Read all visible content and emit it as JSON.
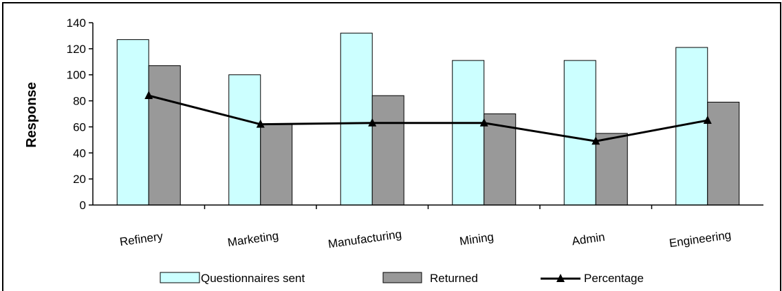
{
  "chart_data": {
    "type": "bar",
    "title": "",
    "xlabel": "",
    "ylabel": "Response",
    "ylim": [
      0,
      140
    ],
    "yticks": [
      0,
      20,
      40,
      60,
      80,
      100,
      120,
      140
    ],
    "grid": false,
    "legend_position": "bottom",
    "categories": [
      "Refinery",
      "Marketing",
      "Manufacturing",
      "Mining",
      "Admin",
      "Engineering"
    ],
    "series": [
      {
        "name": "Questionnaires sent",
        "type": "bar",
        "color": "#ccffff",
        "values": [
          127,
          100,
          132,
          111,
          111,
          121
        ]
      },
      {
        "name": "Returned",
        "type": "bar",
        "color": "#999999",
        "values": [
          107,
          62,
          84,
          70,
          55,
          79
        ]
      },
      {
        "name": "Percentage",
        "type": "line",
        "color": "#000000",
        "marker": "triangle",
        "values": [
          84,
          62,
          63,
          63,
          49,
          65
        ]
      }
    ]
  }
}
